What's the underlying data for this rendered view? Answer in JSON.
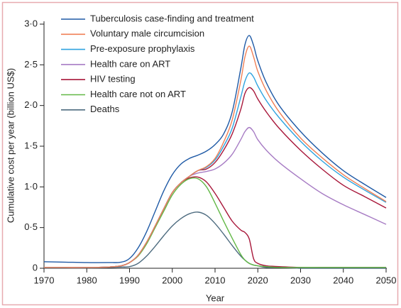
{
  "chart_data": {
    "type": "line",
    "xlabel": "Year",
    "ylabel": "Cumulative cost per year (billion US$)",
    "x": [
      1970,
      1975,
      1980,
      1985,
      1988,
      1990,
      1992,
      1994,
      1996,
      1998,
      2000,
      2002,
      2004,
      2006,
      2008,
      2010,
      2012,
      2014,
      2016,
      2017,
      2018,
      2019,
      2020,
      2022,
      2025,
      2030,
      2035,
      2040,
      2045,
      2050
    ],
    "series": [
      {
        "name": "Tuberculosis case-finding and treatment",
        "color": "#1f5aa6",
        "values": [
          0.08,
          0.075,
          0.07,
          0.07,
          0.075,
          0.12,
          0.25,
          0.45,
          0.7,
          0.95,
          1.15,
          1.28,
          1.35,
          1.39,
          1.44,
          1.52,
          1.65,
          1.92,
          2.45,
          2.75,
          2.86,
          2.74,
          2.55,
          2.28,
          2.0,
          1.68,
          1.42,
          1.2,
          1.03,
          0.87
        ]
      },
      {
        "name": "Voluntary male circumcision",
        "color": "#f07f55",
        "values": [
          0.01,
          0.01,
          0.01,
          0.015,
          0.03,
          0.07,
          0.16,
          0.32,
          0.52,
          0.73,
          0.93,
          1.05,
          1.13,
          1.2,
          1.25,
          1.35,
          1.55,
          1.82,
          2.3,
          2.6,
          2.73,
          2.6,
          2.42,
          2.18,
          1.92,
          1.6,
          1.36,
          1.15,
          0.98,
          0.82
        ]
      },
      {
        "name": "Pre-exposure prophylaxis",
        "color": "#2fa3df",
        "values": [
          0.01,
          0.01,
          0.01,
          0.015,
          0.03,
          0.07,
          0.16,
          0.32,
          0.52,
          0.73,
          0.93,
          1.05,
          1.13,
          1.2,
          1.24,
          1.33,
          1.5,
          1.72,
          2.1,
          2.3,
          2.4,
          2.35,
          2.24,
          2.06,
          1.85,
          1.56,
          1.32,
          1.12,
          0.96,
          0.81
        ]
      },
      {
        "name": "Health care on ART",
        "color": "#a77cc4",
        "values": [
          0.01,
          0.01,
          0.01,
          0.015,
          0.03,
          0.07,
          0.16,
          0.32,
          0.52,
          0.73,
          0.93,
          1.05,
          1.13,
          1.17,
          1.19,
          1.22,
          1.29,
          1.4,
          1.58,
          1.68,
          1.73,
          1.68,
          1.58,
          1.45,
          1.3,
          1.1,
          0.92,
          0.78,
          0.66,
          0.54
        ]
      },
      {
        "name": "HIV testing",
        "color": "#a8173a",
        "values": [
          0.01,
          0.01,
          0.01,
          0.015,
          0.03,
          0.07,
          0.16,
          0.32,
          0.52,
          0.73,
          0.93,
          1.05,
          1.13,
          1.2,
          1.22,
          1.3,
          1.45,
          1.65,
          1.95,
          2.15,
          2.22,
          2.18,
          2.08,
          1.92,
          1.72,
          1.45,
          1.22,
          1.02,
          0.88,
          0.74
        ]
      },
      {
        "name": "Health care not on ART",
        "color": "#62b846",
        "values": [
          0.01,
          0.01,
          0.01,
          0.015,
          0.03,
          0.07,
          0.15,
          0.3,
          0.5,
          0.7,
          0.9,
          1.03,
          1.1,
          1.1,
          1.0,
          0.8,
          0.58,
          0.37,
          0.17,
          0.1,
          0.06,
          0.04,
          0.03,
          0.02,
          0.01,
          0.01,
          0.01,
          0.01,
          0.01,
          0.01
        ]
      },
      {
        "name": "Deaths",
        "color": "#4d6b7f",
        "values": [
          0.005,
          0.005,
          0.005,
          0.01,
          0.015,
          0.02,
          0.06,
          0.15,
          0.27,
          0.4,
          0.52,
          0.61,
          0.67,
          0.69,
          0.65,
          0.55,
          0.42,
          0.28,
          0.15,
          0.1,
          0.06,
          0.04,
          0.03,
          0.01,
          0.01,
          0,
          0,
          0,
          0,
          0
        ]
      },
      {
        "color": "#a8173a",
        "values": [
          0.01,
          0.01,
          0.01,
          0.015,
          0.03,
          0.07,
          0.16,
          0.32,
          0.52,
          0.73,
          0.93,
          1.05,
          1.11,
          1.12,
          1.06,
          0.92,
          0.75,
          0.58,
          0.47,
          0.44,
          0.36,
          0.12,
          0.06,
          0.03,
          0.02,
          0.01,
          0.01,
          0.01,
          0.01,
          0.01
        ]
      }
    ],
    "xlim": [
      1970,
      2050
    ],
    "xticks": [
      1970,
      1980,
      1990,
      2000,
      2010,
      2020,
      2030,
      2040,
      2050
    ],
    "ylim": [
      0,
      3
    ],
    "yticks": [
      0,
      {
        "value": 0.5,
        "label": "0·5"
      },
      {
        "value": 1,
        "label": "1·0"
      },
      {
        "value": 1.5,
        "label": "1·5"
      },
      {
        "value": 2,
        "label": "2·0"
      },
      {
        "value": 2.5,
        "label": "2·5"
      },
      {
        "value": 3,
        "label": "3·0"
      }
    ],
    "legend": "upper left",
    "grid": false
  }
}
